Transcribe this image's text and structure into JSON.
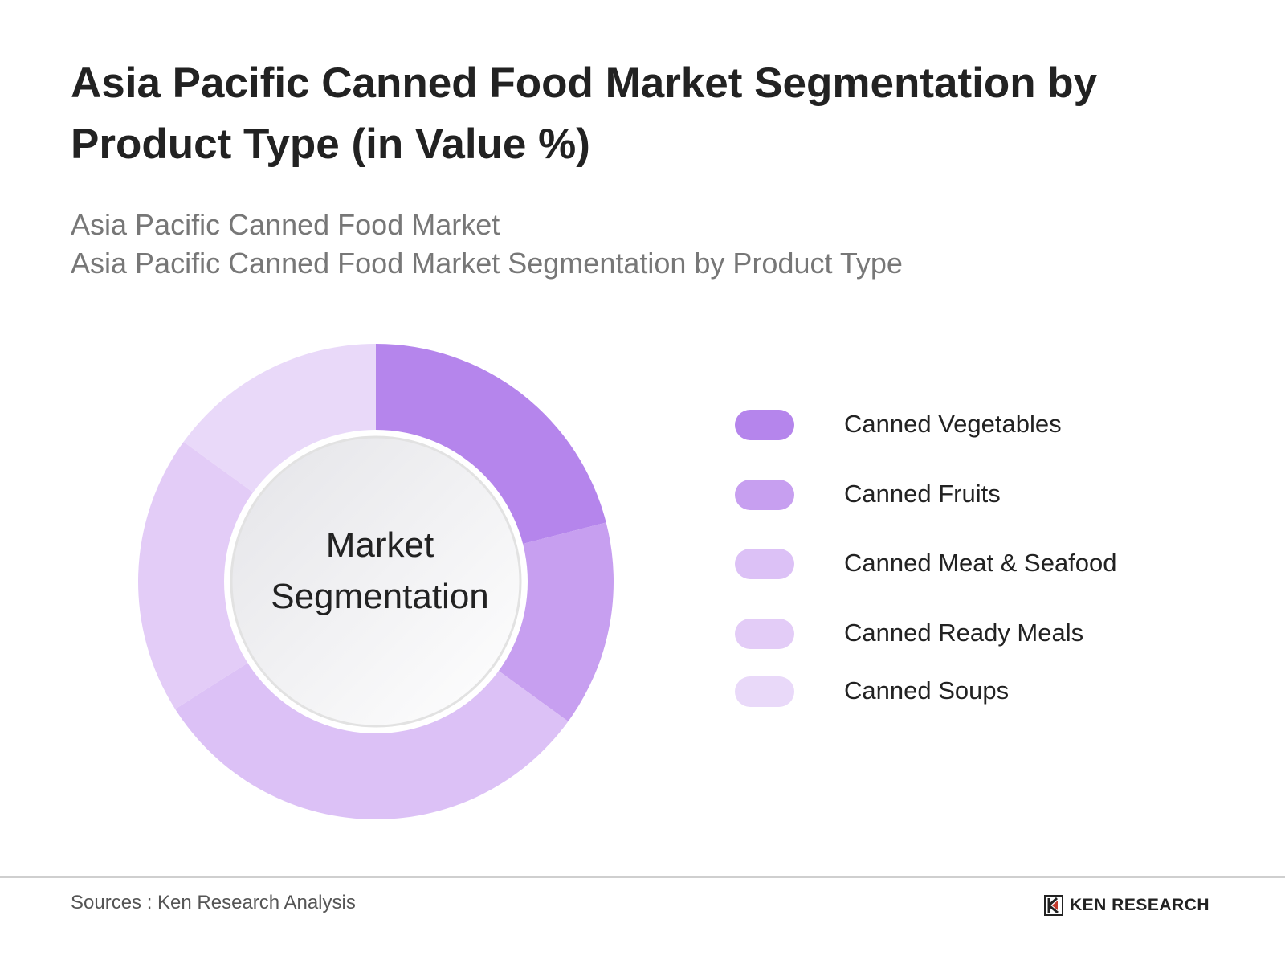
{
  "title": "Asia Pacific Canned Food Market Segmentation by Product Type (in Value %)",
  "subtitle_line1": "Asia Pacific Canned Food Market",
  "subtitle_line2": "Asia Pacific Canned Food Market Segmentation by Product Type",
  "center_label_line1": "Market",
  "center_label_line2": "Segmentation",
  "source": "Sources : Ken Research Analysis",
  "brand": "KEN RESEARCH",
  "chart_data": {
    "type": "pie",
    "title": "Asia Pacific Canned Food Market Segmentation by Product Type (in Value %)",
    "categories": [
      "Canned Vegetables",
      "Canned Fruits",
      "Canned Meat & Seafood",
      "Canned Ready Meals",
      "Canned Soups"
    ],
    "values": [
      21,
      14,
      31,
      19,
      15
    ],
    "colors": [
      "#b585ec",
      "#c79ff0",
      "#dcc1f6",
      "#e3ccf7",
      "#e9d9f9"
    ],
    "legend_placement": "right",
    "center_label": "Market Segmentation"
  }
}
